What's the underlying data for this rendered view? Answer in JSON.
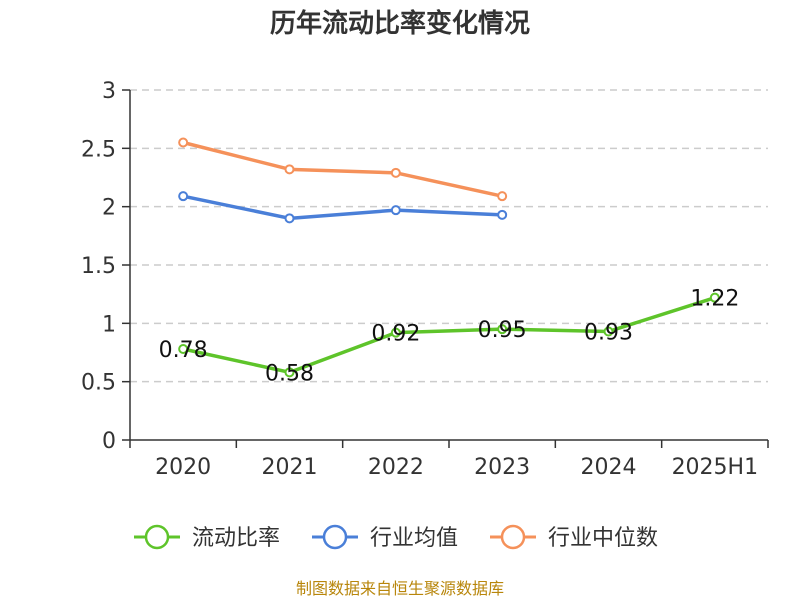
{
  "chart_data": {
    "type": "line",
    "title": "历年流动比率变化情况",
    "xlabel": "",
    "ylabel": "",
    "categories": [
      "2020",
      "2021",
      "2022",
      "2023",
      "2024",
      "2025H1"
    ],
    "ylim": [
      0,
      3
    ],
    "yticks": [
      "0",
      "0.5",
      "1",
      "1.5",
      "2",
      "2.5",
      "3"
    ],
    "grid": true,
    "legend_position": "bottom",
    "series": [
      {
        "name": "流动比率",
        "color": "#5ec42a",
        "values": [
          0.78,
          0.58,
          0.92,
          0.95,
          0.93,
          1.22
        ],
        "labels": [
          "0.78",
          "0.58",
          "0.92",
          "0.95",
          "0.93",
          "1.22"
        ]
      },
      {
        "name": "行业均值",
        "color": "#4a7fd8",
        "values": [
          2.09,
          1.9,
          1.97,
          1.93,
          null,
          null
        ]
      },
      {
        "name": "行业中位数",
        "color": "#f5915a",
        "values": [
          2.55,
          2.32,
          2.29,
          2.09,
          null,
          null
        ]
      }
    ]
  },
  "footer": {
    "source": "制图数据来自恒生聚源数据库"
  }
}
